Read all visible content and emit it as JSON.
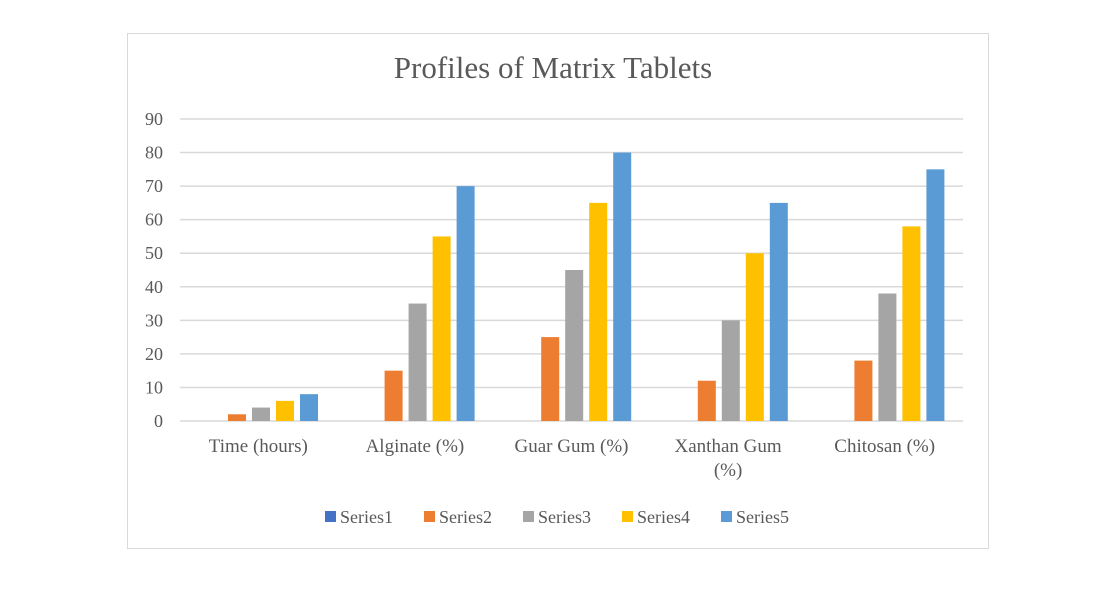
{
  "chart_data": {
    "type": "bar",
    "title": "Profiles of Matrix Tablets",
    "categories": [
      [
        "Time (hours)"
      ],
      [
        "Alginate (%)"
      ],
      [
        "Guar Gum (%)"
      ],
      [
        "Xanthan Gum",
        "(%)"
      ],
      [
        "Chitosan (%)"
      ]
    ],
    "series": [
      {
        "name": "Series1",
        "color": "#4472c4",
        "values": [
          0,
          0,
          0,
          0,
          0
        ]
      },
      {
        "name": "Series2",
        "color": "#ed7d31",
        "values": [
          2,
          15,
          25,
          12,
          18
        ]
      },
      {
        "name": "Series3",
        "color": "#a5a5a5",
        "values": [
          4,
          35,
          45,
          30,
          38
        ]
      },
      {
        "name": "Series4",
        "color": "#ffc000",
        "values": [
          6,
          55,
          65,
          50,
          58
        ]
      },
      {
        "name": "Series5",
        "color": "#5b9bd5",
        "values": [
          8,
          70,
          80,
          65,
          75
        ]
      }
    ],
    "ylim": [
      0,
      90
    ],
    "yticks": [
      0,
      10,
      20,
      30,
      40,
      50,
      60,
      70,
      80,
      90
    ],
    "grid": true,
    "legend": "bottom"
  }
}
